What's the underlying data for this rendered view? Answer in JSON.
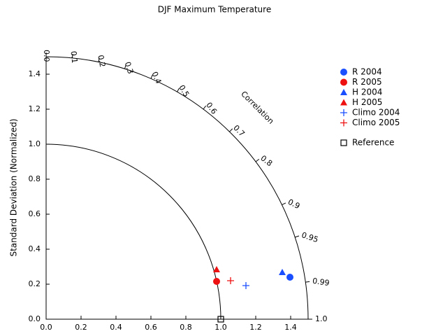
{
  "chart_data": {
    "type": "taylor",
    "title": "DJF Maximum Temperature",
    "ylabel": "Standard Deviation (Normalized)",
    "corr_label": "Correlation",
    "xlim": [
      0,
      1.5
    ],
    "ylim": [
      0,
      1.5
    ],
    "xticks": [
      {
        "value": 0,
        "label": "0.0"
      },
      0.2,
      0.4,
      0.6,
      0.8,
      {
        "value": 1,
        "label": "1.0"
      },
      1.2,
      1.4
    ],
    "yticks": [
      {
        "value": 0,
        "label": "0.0"
      },
      0.2,
      0.4,
      0.6,
      0.8,
      {
        "value": 1,
        "label": "1.0"
      },
      1.2,
      1.4
    ],
    "corr_ticks": [
      {
        "value": 0,
        "label": "0.0"
      },
      0.1,
      0.2,
      0.3,
      0.4,
      0.5,
      0.6,
      0.7,
      0.8,
      0.9,
      0.95,
      0.99,
      {
        "value": 1,
        "label": "1.0"
      }
    ],
    "series": [
      {
        "name": "R 2004",
        "color": "#1a4fff",
        "marker": "circle",
        "x": [
          1.396
        ],
        "values": [
          0.24
        ]
      },
      {
        "name": "R 2005",
        "color": "#ee1111",
        "marker": "circle",
        "x": [
          0.976
        ],
        "values": [
          0.216
        ]
      },
      {
        "name": "H 2004",
        "color": "#1a4fff",
        "marker": "triangle",
        "x": [
          1.352
        ],
        "values": [
          0.268
        ]
      },
      {
        "name": "H 2005",
        "color": "#ee1111",
        "marker": "triangle",
        "x": [
          0.976
        ],
        "values": [
          0.284
        ]
      },
      {
        "name": "Climo 2004",
        "color": "#1a4fff",
        "marker": "plus",
        "x": [
          1.144
        ],
        "values": [
          0.192
        ]
      },
      {
        "name": "Climo 2005",
        "color": "#ee1111",
        "marker": "plus",
        "x": [
          1.056
        ],
        "values": [
          0.22
        ]
      },
      {
        "name": "Reference",
        "color": "#000000",
        "marker": "open-square",
        "x": [
          1.0
        ],
        "values": [
          0
        ]
      }
    ]
  }
}
